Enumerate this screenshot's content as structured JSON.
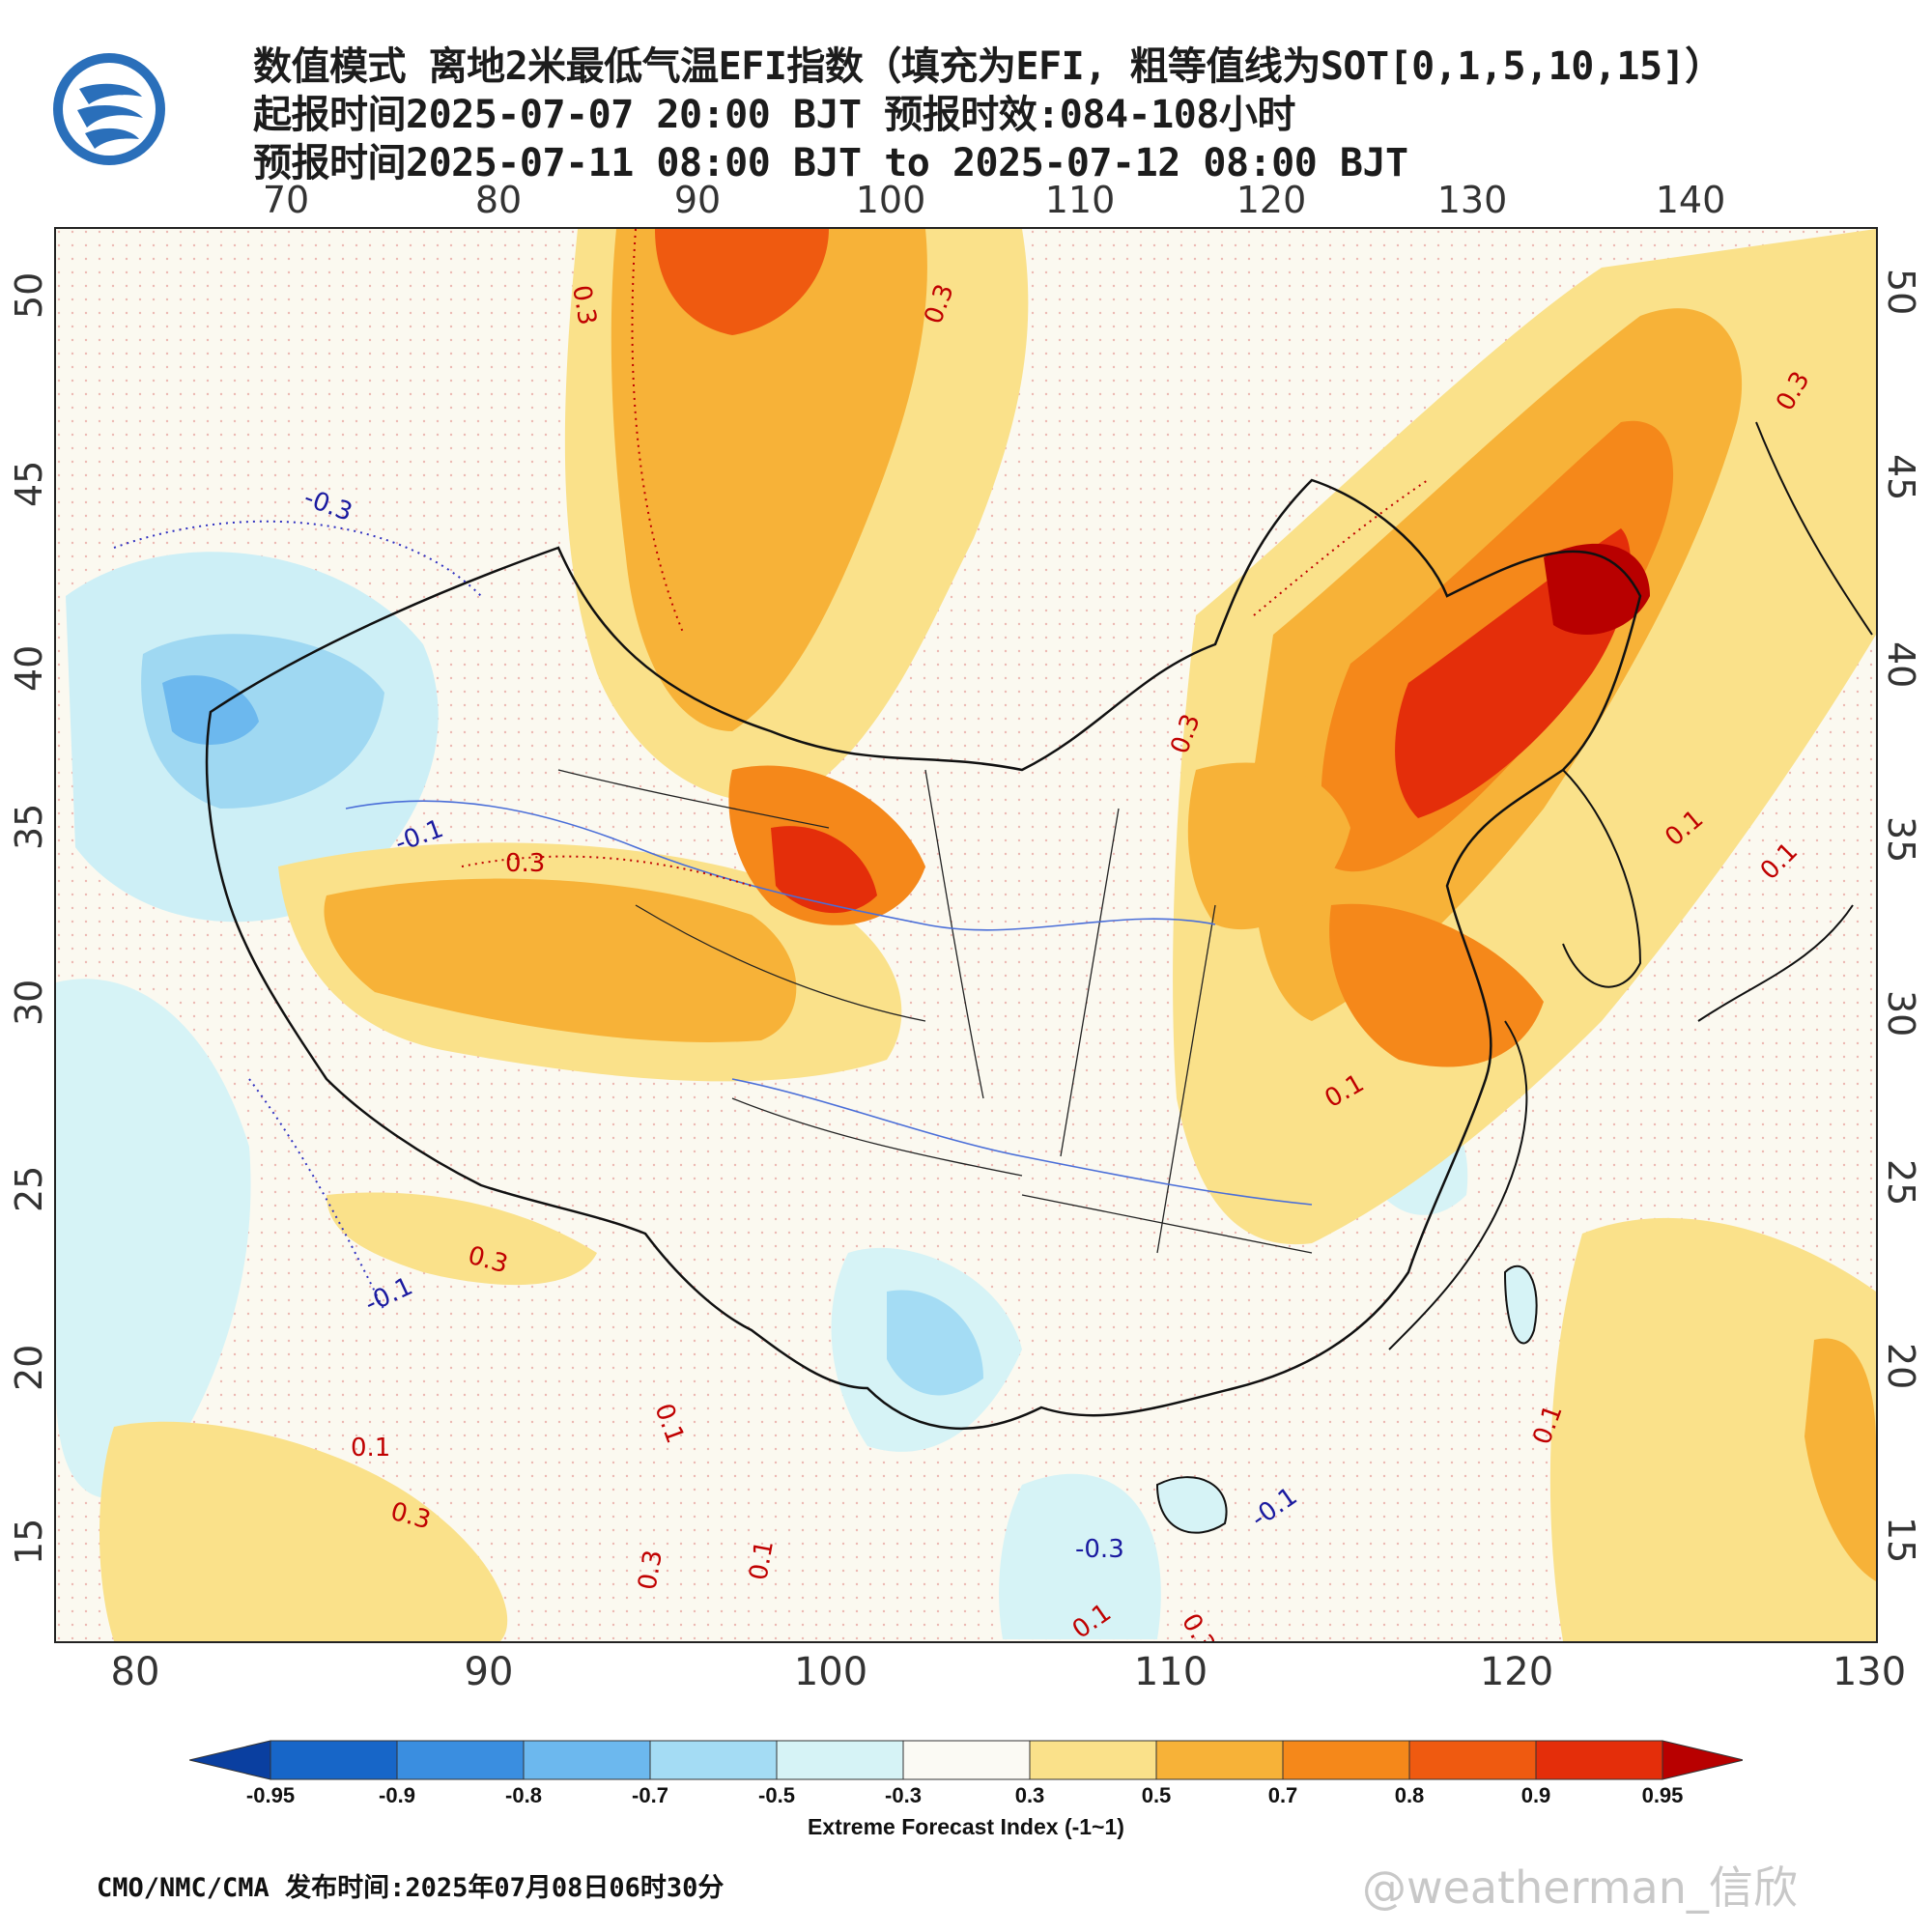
{
  "title": {
    "line1": "数值模式 离地2米最低气温EFI指数（填充为EFI, 粗等值线为SOT[0,1,5,10,15]）",
    "line2": "起报时间2025-07-07 20:00 BJT 预报时效:084-108小时",
    "line3": "预报时间2025-07-11 08:00 BJT to 2025-07-12 08:00 BJT"
  },
  "logo": {
    "icon": "cma-weather-logo-icon",
    "color": "#1f5fa8"
  },
  "axes": {
    "top_lon": [
      "70",
      "80",
      "90",
      "100",
      "110",
      "120",
      "130",
      "140"
    ],
    "bottom_lon": [
      "80",
      "90",
      "100",
      "110",
      "120",
      "130"
    ],
    "left_lat": [
      "50",
      "45",
      "40",
      "35",
      "30",
      "25",
      "20",
      "15"
    ],
    "right_lat": [
      "50",
      "45",
      "40",
      "35",
      "30",
      "25",
      "20",
      "15"
    ]
  },
  "contour_labels": [
    {
      "text": "0.3",
      "color": "#c00000"
    },
    {
      "text": "0.3",
      "color": "#c00000"
    },
    {
      "text": "-0.3",
      "color": "#1a1aa0"
    },
    {
      "text": "0.3",
      "color": "#c00000"
    },
    {
      "text": "-0.1",
      "color": "#1a1aa0"
    },
    {
      "text": "0.3",
      "color": "#c00000"
    },
    {
      "text": "0.3",
      "color": "#c00000"
    },
    {
      "text": "0.1",
      "color": "#c00000"
    },
    {
      "text": "0.3",
      "color": "#c00000"
    },
    {
      "text": "-0.1",
      "color": "#1a1aa0"
    },
    {
      "text": "0.1",
      "color": "#c00000"
    },
    {
      "text": "0.3",
      "color": "#c00000"
    },
    {
      "text": "0.1",
      "color": "#c00000"
    },
    {
      "text": "0.1",
      "color": "#c00000"
    },
    {
      "text": "-0.1",
      "color": "#1a1aa0"
    },
    {
      "text": "-0.3",
      "color": "#1a1aa0"
    },
    {
      "text": "0.1",
      "color": "#c00000"
    },
    {
      "text": "0.3",
      "color": "#c00000"
    },
    {
      "text": "0.1",
      "color": "#c00000"
    },
    {
      "text": "0.3",
      "color": "#c00000"
    },
    {
      "text": "0.1",
      "color": "#c00000"
    },
    {
      "text": "0.1",
      "color": "#c00000"
    }
  ],
  "colorbar": {
    "labels": [
      "-0.95",
      "-0.9",
      "-0.8",
      "-0.7",
      "-0.5",
      "-0.3",
      "0.3",
      "0.5",
      "0.7",
      "0.8",
      "0.9",
      "0.95"
    ],
    "colors": [
      "#0a3fa0",
      "#1766c8",
      "#3a8ee0",
      "#6cb8ee",
      "#a4dcf4",
      "#d6f3f6",
      "#fbfaf4",
      "#fae18a",
      "#f7b238",
      "#f5881a",
      "#ef5a10",
      "#e42e0a",
      "#b80000"
    ],
    "title": "Extreme Forecast Index (-1~1)"
  },
  "footer": "CMO/NMC/CMA 发布时间:2025年07月08日06时30分",
  "watermark": "@weatherman_信欣"
}
